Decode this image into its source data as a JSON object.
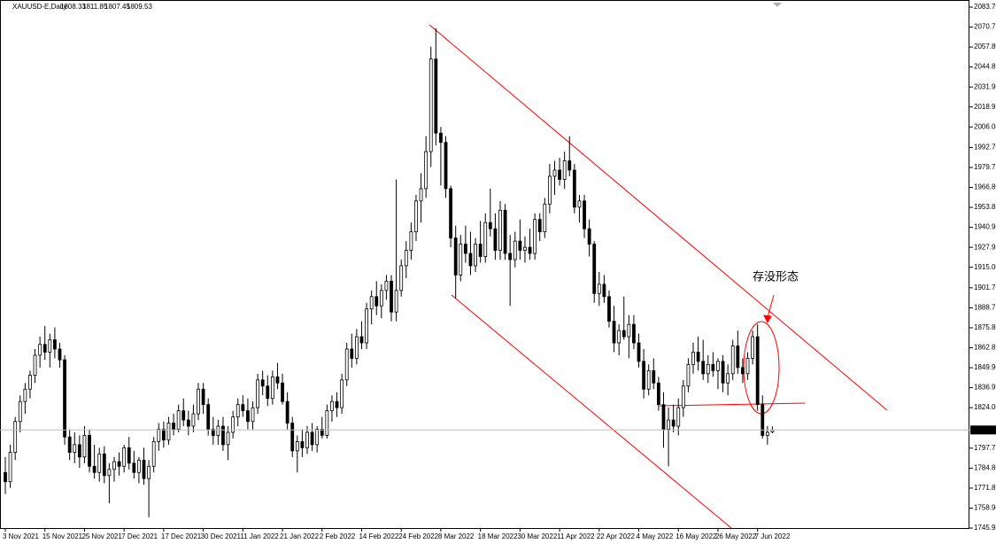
{
  "chart_data": {
    "type": "candlestick",
    "title": "XAUUSD-E,Daily",
    "annotation": "存没形态",
    "up_color": "#ffffff",
    "down_color": "#000000",
    "annotation_color": "#ff0000",
    "ylim": [
      1745.95,
      2083.7
    ],
    "yticks": [
      {
        "value": 1745.95,
        "label": "1745.95"
      },
      {
        "value": 1758.9,
        "label": "1758.90"
      },
      {
        "value": 1771.85,
        "label": "1771.85"
      },
      {
        "value": 1784.8,
        "label": "1784.80"
      },
      {
        "value": 1797.75,
        "label": "1797.75"
      },
      {
        "value": 1824,
        "label": "1824.00"
      },
      {
        "value": 1836.95,
        "label": "1836.95"
      },
      {
        "value": 1849.9,
        "label": "1849.90"
      },
      {
        "value": 1862.85,
        "label": "1862.85"
      },
      {
        "value": 1875.8,
        "label": "1875.80"
      },
      {
        "value": 1888.75,
        "label": "1888.75"
      },
      {
        "value": 1901.7,
        "label": "1901.70"
      },
      {
        "value": 1915,
        "label": "1915.00"
      },
      {
        "value": 1927.95,
        "label": "1927.95"
      },
      {
        "value": 1940.9,
        "label": "1940.90"
      },
      {
        "value": 1953.85,
        "label": "1953.85"
      },
      {
        "value": 1966.8,
        "label": "1966.80"
      },
      {
        "value": 1979.75,
        "label": "1979.75"
      },
      {
        "value": 1992.7,
        "label": "1992.70"
      },
      {
        "value": 2006,
        "label": "2006.00"
      },
      {
        "value": 2018.95,
        "label": "2018.95"
      },
      {
        "value": 2031.9,
        "label": "2031.90"
      },
      {
        "value": 2044.85,
        "label": "2044.85"
      },
      {
        "value": 2057.8,
        "label": "2057.80"
      },
      {
        "value": 2070.75,
        "label": "2070.75"
      },
      {
        "value": 2083.7,
        "label": "2083.70"
      }
    ],
    "categories": [
      "3 Nov 2021",
      null,
      null,
      null,
      null,
      null,
      null,
      null,
      "15 Nov 2021",
      null,
      null,
      null,
      null,
      null,
      null,
      null,
      "25 Nov 2021",
      null,
      null,
      null,
      null,
      null,
      null,
      null,
      "7 Dec 2021",
      null,
      null,
      null,
      null,
      null,
      null,
      null,
      "17 Dec 2021",
      null,
      null,
      null,
      null,
      null,
      null,
      null,
      "30 Dec 2021",
      null,
      null,
      null,
      null,
      null,
      null,
      null,
      "11 Jan 2022",
      null,
      null,
      null,
      null,
      null,
      null,
      null,
      "21 Jan 2022",
      null,
      null,
      null,
      null,
      null,
      null,
      null,
      "2 Feb 2022",
      null,
      null,
      null,
      null,
      null,
      null,
      null,
      "14 Feb 2022",
      null,
      null,
      null,
      null,
      null,
      null,
      null,
      "24 Feb 2022",
      null,
      null,
      null,
      null,
      null,
      null,
      null,
      "8 Mar 2022",
      null,
      null,
      null,
      null,
      null,
      null,
      null,
      "18 Mar 2022",
      null,
      null,
      null,
      null,
      null,
      null,
      null,
      "30 Mar 2022",
      null,
      null,
      null,
      null,
      null,
      null,
      null,
      "11 Apr 2022",
      null,
      null,
      null,
      null,
      null,
      null,
      null,
      "22 Apr 2022",
      null,
      null,
      null,
      null,
      null,
      null,
      null,
      "4 May 2022",
      null,
      null,
      null,
      null,
      null,
      null,
      null,
      "16 May 2022",
      null,
      null,
      null,
      null,
      null,
      null,
      null,
      "26 May 2022",
      null,
      null,
      null,
      null,
      null,
      null,
      null,
      "7 Jun 2022",
      null,
      null,
      null
    ],
    "ohlc": [
      [
        1782,
        1792,
        1768,
        1776
      ],
      [
        1776,
        1800,
        1772,
        1795
      ],
      [
        1795,
        1818,
        1790,
        1815
      ],
      [
        1815,
        1832,
        1808,
        1828
      ],
      [
        1828,
        1840,
        1820,
        1836
      ],
      [
        1836,
        1848,
        1830,
        1845
      ],
      [
        1845,
        1862,
        1840,
        1858
      ],
      [
        1858,
        1870,
        1850,
        1865
      ],
      [
        1865,
        1877,
        1855,
        1860
      ],
      [
        1860,
        1872,
        1850,
        1868
      ],
      [
        1868,
        1876,
        1856,
        1862
      ],
      [
        1862,
        1866,
        1850,
        1855
      ],
      [
        1855,
        1858,
        1800,
        1805
      ],
      [
        1805,
        1810,
        1790,
        1795
      ],
      [
        1795,
        1808,
        1788,
        1800
      ],
      [
        1800,
        1806,
        1785,
        1792
      ],
      [
        1792,
        1812,
        1788,
        1806
      ],
      [
        1806,
        1810,
        1782,
        1786
      ],
      [
        1786,
        1800,
        1778,
        1782
      ],
      [
        1782,
        1798,
        1776,
        1794
      ],
      [
        1794,
        1799,
        1775,
        1780
      ],
      [
        1780,
        1788,
        1762,
        1784
      ],
      [
        1784,
        1792,
        1776,
        1789
      ],
      [
        1789,
        1795,
        1780,
        1786
      ],
      [
        1786,
        1800,
        1782,
        1798
      ],
      [
        1798,
        1805,
        1784,
        1788
      ],
      [
        1788,
        1796,
        1778,
        1782
      ],
      [
        1782,
        1792,
        1775,
        1790
      ],
      [
        1790,
        1798,
        1774,
        1778
      ],
      [
        1778,
        1790,
        1753,
        1786
      ],
      [
        1786,
        1805,
        1782,
        1802
      ],
      [
        1802,
        1814,
        1796,
        1810
      ],
      [
        1810,
        1815,
        1798,
        1803
      ],
      [
        1803,
        1818,
        1800,
        1814
      ],
      [
        1814,
        1820,
        1806,
        1810
      ],
      [
        1810,
        1826,
        1808,
        1822
      ],
      [
        1822,
        1830,
        1812,
        1816
      ],
      [
        1816,
        1822,
        1806,
        1812
      ],
      [
        1812,
        1826,
        1808,
        1820
      ],
      [
        1820,
        1840,
        1816,
        1836
      ],
      [
        1836,
        1840,
        1820,
        1826
      ],
      [
        1826,
        1830,
        1806,
        1810
      ],
      [
        1810,
        1818,
        1800,
        1806
      ],
      [
        1806,
        1816,
        1800,
        1812
      ],
      [
        1812,
        1818,
        1796,
        1800
      ],
      [
        1800,
        1812,
        1790,
        1808
      ],
      [
        1808,
        1822,
        1804,
        1818
      ],
      [
        1818,
        1830,
        1812,
        1826
      ],
      [
        1826,
        1832,
        1818,
        1822
      ],
      [
        1822,
        1830,
        1810,
        1815
      ],
      [
        1815,
        1828,
        1810,
        1824
      ],
      [
        1824,
        1846,
        1820,
        1842
      ],
      [
        1842,
        1848,
        1832,
        1838
      ],
      [
        1838,
        1845,
        1825,
        1830
      ],
      [
        1830,
        1848,
        1826,
        1844
      ],
      [
        1844,
        1853,
        1836,
        1840
      ],
      [
        1840,
        1846,
        1826,
        1828
      ],
      [
        1828,
        1834,
        1810,
        1814
      ],
      [
        1814,
        1818,
        1792,
        1796
      ],
      [
        1796,
        1806,
        1782,
        1802
      ],
      [
        1802,
        1810,
        1792,
        1798
      ],
      [
        1798,
        1812,
        1794,
        1808
      ],
      [
        1808,
        1814,
        1796,
        1800
      ],
      [
        1800,
        1812,
        1795,
        1810
      ],
      [
        1810,
        1818,
        1804,
        1806
      ],
      [
        1806,
        1826,
        1804,
        1822
      ],
      [
        1822,
        1832,
        1815,
        1828
      ],
      [
        1828,
        1834,
        1818,
        1824
      ],
      [
        1824,
        1846,
        1820,
        1842
      ],
      [
        1842,
        1866,
        1838,
        1862
      ],
      [
        1862,
        1872,
        1850,
        1856
      ],
      [
        1856,
        1875,
        1852,
        1870
      ],
      [
        1870,
        1880,
        1862,
        1866
      ],
      [
        1866,
        1892,
        1862,
        1888
      ],
      [
        1888,
        1900,
        1878,
        1896
      ],
      [
        1896,
        1906,
        1884,
        1890
      ],
      [
        1890,
        1904,
        1882,
        1900
      ],
      [
        1900,
        1910,
        1894,
        1906
      ],
      [
        1906,
        1910,
        1880,
        1886
      ],
      [
        1886,
        1972,
        1880,
        1900
      ],
      [
        1900,
        1920,
        1896,
        1916
      ],
      [
        1916,
        1932,
        1908,
        1926
      ],
      [
        1926,
        1944,
        1920,
        1938
      ],
      [
        1938,
        1962,
        1932,
        1958
      ],
      [
        1958,
        1976,
        1944,
        1966
      ],
      [
        1966,
        2000,
        1960,
        1990
      ],
      [
        1990,
        2058,
        1980,
        2050
      ],
      [
        2050,
        2070,
        1994,
        2002
      ],
      [
        2002,
        2006,
        1968,
        1996
      ],
      [
        1996,
        2000,
        1960,
        1966
      ],
      [
        1966,
        1968,
        1928,
        1934
      ],
      [
        1934,
        1942,
        1895,
        1910
      ],
      [
        1910,
        1936,
        1906,
        1930
      ],
      [
        1930,
        1942,
        1918,
        1924
      ],
      [
        1924,
        1938,
        1910,
        1916
      ],
      [
        1916,
        1934,
        1912,
        1930
      ],
      [
        1930,
        1945,
        1918,
        1922
      ],
      [
        1922,
        1950,
        1918,
        1944
      ],
      [
        1944,
        1966,
        1935,
        1940
      ],
      [
        1940,
        1950,
        1920,
        1926
      ],
      [
        1926,
        1958,
        1920,
        1952
      ],
      [
        1952,
        1956,
        1920,
        1924
      ],
      [
        1924,
        1936,
        1890,
        1920
      ],
      [
        1920,
        1938,
        1915,
        1932
      ],
      [
        1932,
        1946,
        1920,
        1926
      ],
      [
        1926,
        1935,
        1918,
        1928
      ],
      [
        1928,
        1940,
        1920,
        1924
      ],
      [
        1924,
        1950,
        1920,
        1946
      ],
      [
        1946,
        1950,
        1932,
        1938
      ],
      [
        1938,
        1960,
        1934,
        1956
      ],
      [
        1956,
        1982,
        1950,
        1974
      ],
      [
        1974,
        1984,
        1962,
        1978
      ],
      [
        1978,
        1986,
        1968,
        1972
      ],
      [
        1972,
        1990,
        1966,
        1984
      ],
      [
        1984,
        2000,
        1974,
        1978
      ],
      [
        1978,
        1982,
        1950,
        1954
      ],
      [
        1954,
        1962,
        1944,
        1958
      ],
      [
        1958,
        1962,
        1934,
        1940
      ],
      [
        1940,
        1946,
        1922,
        1930
      ],
      [
        1930,
        1932,
        1892,
        1898
      ],
      [
        1898,
        1912,
        1890,
        1904
      ],
      [
        1904,
        1910,
        1892,
        1896
      ],
      [
        1896,
        1900,
        1876,
        1880
      ],
      [
        1880,
        1890,
        1860,
        1866
      ],
      [
        1866,
        1878,
        1858,
        1874
      ],
      [
        1874,
        1896,
        1868,
        1870
      ],
      [
        1870,
        1884,
        1856,
        1878
      ],
      [
        1878,
        1884,
        1862,
        1866
      ],
      [
        1866,
        1872,
        1850,
        1854
      ],
      [
        1854,
        1862,
        1830,
        1836
      ],
      [
        1836,
        1852,
        1832,
        1848
      ],
      [
        1848,
        1856,
        1836,
        1840
      ],
      [
        1840,
        1844,
        1822,
        1826
      ],
      [
        1826,
        1834,
        1798,
        1810
      ],
      [
        1810,
        1824,
        1786,
        1816
      ],
      [
        1816,
        1826,
        1808,
        1812
      ],
      [
        1812,
        1830,
        1806,
        1824
      ],
      [
        1824,
        1842,
        1818,
        1838
      ],
      [
        1838,
        1856,
        1834,
        1852
      ],
      [
        1852,
        1866,
        1846,
        1860
      ],
      [
        1860,
        1870,
        1848,
        1854
      ],
      [
        1854,
        1868,
        1842,
        1846
      ],
      [
        1846,
        1858,
        1840,
        1852
      ],
      [
        1852,
        1860,
        1844,
        1848
      ],
      [
        1848,
        1856,
        1836,
        1854
      ],
      [
        1854,
        1858,
        1834,
        1840
      ],
      [
        1840,
        1852,
        1832,
        1846
      ],
      [
        1846,
        1868,
        1842,
        1864
      ],
      [
        1864,
        1874,
        1846,
        1850
      ],
      [
        1850,
        1856,
        1840,
        1846
      ],
      [
        1846,
        1860,
        1842,
        1856
      ],
      [
        1856,
        1874,
        1852,
        1870
      ],
      [
        1870,
        1878,
        1822,
        1826
      ],
      [
        1826,
        1832,
        1804,
        1806
      ],
      [
        1806,
        1812,
        1800,
        1808
      ],
      [
        1808.33,
        1811.85,
        1807.45,
        1809.53
      ]
    ]
  }
}
